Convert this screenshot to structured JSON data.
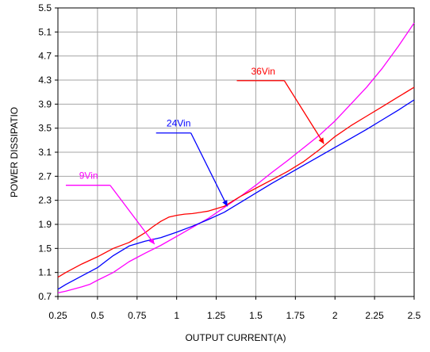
{
  "chart_data": {
    "type": "line",
    "title": "",
    "xlabel": "OUTPUT CURRENT(A)",
    "ylabel": "POWER DISSIPATIO",
    "xlim": [
      0.25,
      2.5
    ],
    "ylim": [
      0.7,
      5.5
    ],
    "x_ticks": [
      "0.25",
      "0.5",
      "0.75",
      "1",
      "1.25",
      "1.5",
      "1.75",
      "2",
      "2.25",
      "2.5"
    ],
    "y_ticks": [
      "0.7",
      "1.1",
      "1.5",
      "1.9",
      "2.3",
      "2.7",
      "3.1",
      "3.5",
      "3.9",
      "4.3",
      "4.7",
      "5.1",
      "5.5"
    ],
    "grid": true,
    "series": [
      {
        "name": "9Vin",
        "color": "#ff00ff",
        "x": [
          0.25,
          0.3,
          0.4,
          0.45,
          0.5,
          0.6,
          0.7,
          0.8,
          0.9,
          1.0,
          1.1,
          1.2,
          1.3,
          1.4,
          1.5,
          1.6,
          1.7,
          1.8,
          1.9,
          2.0,
          2.1,
          2.2,
          2.3,
          2.4,
          2.5
        ],
        "y": [
          0.76,
          0.79,
          0.86,
          0.9,
          0.97,
          1.1,
          1.28,
          1.42,
          1.55,
          1.7,
          1.85,
          2.0,
          2.18,
          2.36,
          2.55,
          2.76,
          2.96,
          3.17,
          3.38,
          3.62,
          3.9,
          4.18,
          4.5,
          4.86,
          5.25
        ]
      },
      {
        "name": "24Vin",
        "color": "#0000ff",
        "x": [
          0.25,
          0.3,
          0.4,
          0.5,
          0.6,
          0.7,
          0.8,
          0.9,
          1.0,
          1.1,
          1.2,
          1.3,
          1.4,
          1.5,
          1.6,
          1.7,
          1.8,
          1.9,
          2.0,
          2.1,
          2.2,
          2.3,
          2.4,
          2.5
        ],
        "y": [
          0.82,
          0.9,
          1.04,
          1.18,
          1.38,
          1.54,
          1.62,
          1.68,
          1.77,
          1.87,
          1.98,
          2.1,
          2.26,
          2.42,
          2.58,
          2.73,
          2.88,
          3.03,
          3.18,
          3.33,
          3.48,
          3.64,
          3.8,
          3.97
        ]
      },
      {
        "name": "36Vin",
        "color": "#ff0000",
        "x": [
          0.25,
          0.3,
          0.4,
          0.5,
          0.6,
          0.7,
          0.8,
          0.85,
          0.9,
          0.95,
          1.0,
          1.05,
          1.1,
          1.2,
          1.3,
          1.4,
          1.5,
          1.6,
          1.7,
          1.8,
          1.9,
          2.0,
          2.1,
          2.2,
          2.3,
          2.4,
          2.5
        ],
        "y": [
          1.02,
          1.1,
          1.24,
          1.36,
          1.5,
          1.6,
          1.76,
          1.86,
          1.95,
          2.02,
          2.05,
          2.07,
          2.08,
          2.12,
          2.2,
          2.36,
          2.5,
          2.64,
          2.78,
          2.94,
          3.14,
          3.36,
          3.54,
          3.7,
          3.86,
          4.02,
          4.18
        ]
      }
    ],
    "annotations": [
      {
        "text": "36Vin",
        "color": "#ff0000",
        "label_xy": [
          1.38,
          4.29
        ],
        "elbow": [
          1.68,
          4.29
        ],
        "point_to": [
          1.93,
          3.24
        ]
      },
      {
        "text": "24Vin",
        "color": "#0000ff",
        "label_xy": [
          0.87,
          3.42
        ],
        "elbow": [
          1.09,
          3.42
        ],
        "point_to": [
          1.32,
          2.2
        ]
      },
      {
        "text": "9Vin",
        "color": "#ff00ff",
        "label_xy": [
          0.3,
          2.55
        ],
        "elbow": [
          0.58,
          2.55
        ],
        "point_to": [
          0.86,
          1.57
        ]
      }
    ]
  }
}
